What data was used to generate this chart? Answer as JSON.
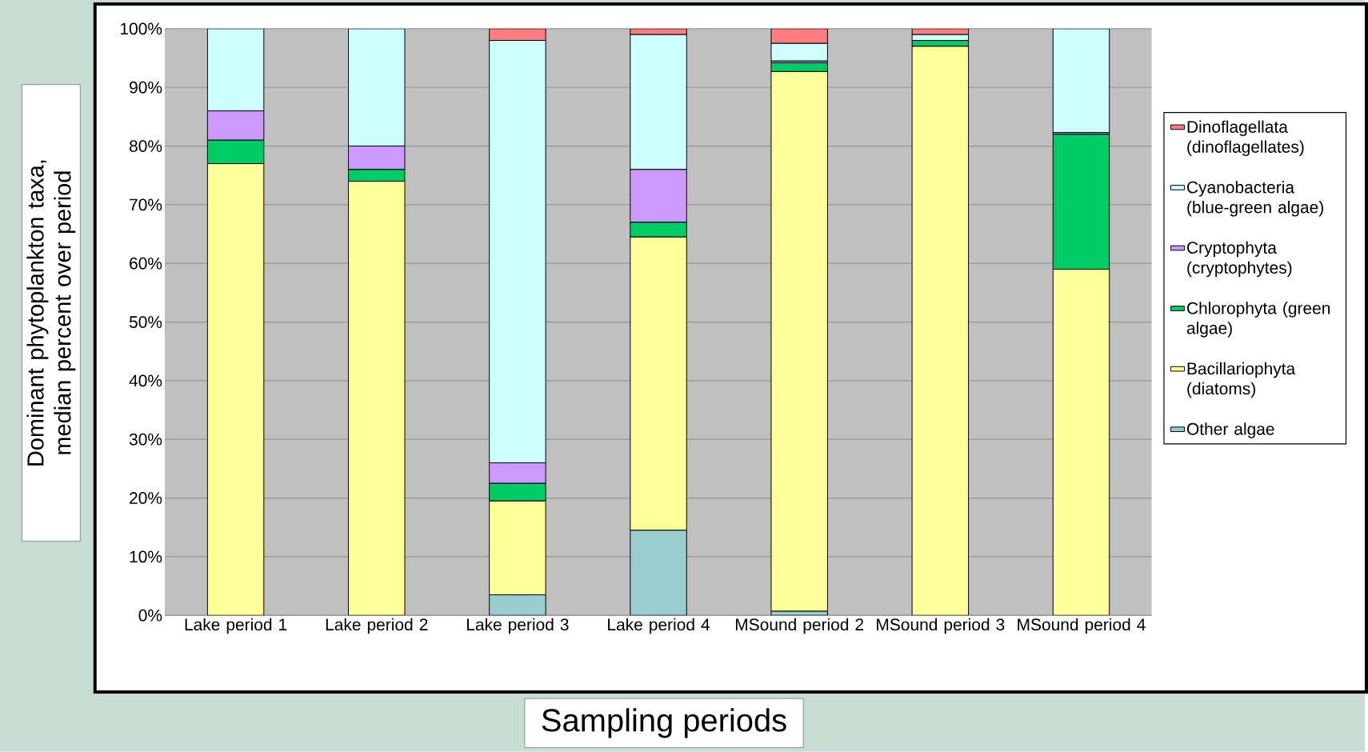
{
  "chart_data": {
    "type": "bar",
    "stacked": true,
    "categories": [
      "Lake period 1",
      "Lake period 2",
      "Lake period 3",
      "Lake period 4",
      "MSound period 2",
      "MSound period 3",
      "MSound period 4"
    ],
    "xlabel": "Sampling periods",
    "ylabel": "Dominant phytoplankton taxa, median percent over period",
    "ylim": [
      0,
      100
    ],
    "yticks": [
      {
        "value": 0,
        "label": "0%"
      },
      {
        "value": 10,
        "label": "10%"
      },
      {
        "value": 20,
        "label": "20%"
      },
      {
        "value": 30,
        "label": "30%"
      },
      {
        "value": 40,
        "label": "40%"
      },
      {
        "value": 50,
        "label": "50%"
      },
      {
        "value": 60,
        "label": "60%"
      },
      {
        "value": 70,
        "label": "70%"
      },
      {
        "value": 80,
        "label": "80%"
      },
      {
        "value": 90,
        "label": "90%"
      },
      {
        "value": 100,
        "label": "100%"
      }
    ],
    "grid": "y",
    "legend": "right",
    "series": [
      {
        "name": "Other algae",
        "color": "#99cccc",
        "values": [
          0,
          0,
          3.5,
          14.5,
          0.7,
          0,
          0
        ]
      },
      {
        "name": "Bacillariophyta (diatoms)",
        "color": "#ffff99",
        "values": [
          77,
          74,
          16,
          50,
          92,
          97,
          59
        ]
      },
      {
        "name": "Chlorophyta (green algae)",
        "color": "#00cc66",
        "values": [
          4,
          2,
          3,
          2.5,
          1.5,
          1,
          23
        ]
      },
      {
        "name": "Cryptophyta (cryptophytes)",
        "color": "#cc99ff",
        "values": [
          5,
          4,
          3.5,
          9,
          0.3,
          0,
          0.3
        ]
      },
      {
        "name": "Cyanobacteria (blue-green algae)",
        "color": "#ccffff",
        "values": [
          14,
          20,
          72,
          23,
          3,
          1,
          17.7
        ]
      },
      {
        "name": "Dinoflagellata (dinoflagellates)",
        "color": "#ff7c80",
        "values": [
          0,
          0,
          2,
          1,
          2.5,
          1,
          0
        ]
      }
    ]
  }
}
